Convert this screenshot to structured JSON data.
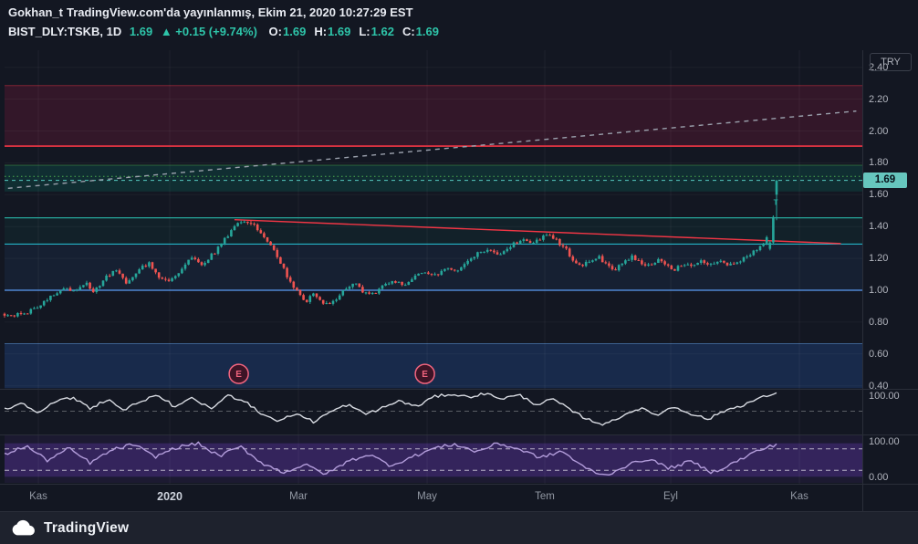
{
  "header": {
    "byline_user": "Gokhan_t",
    "byline_rest": "TradingView.com'da yayınlanmış, Ekim 21, 2020 10:27:29 EST",
    "symbol": "BIST_DLY:TSKB, 1D",
    "last_price": "1.69",
    "change": "▲ +0.15 (+9.74%)",
    "ohlc": [
      {
        "label": "O:",
        "value": "1.69"
      },
      {
        "label": "H:",
        "value": "1.69"
      },
      {
        "label": "L:",
        "value": "1.62"
      },
      {
        "label": "C:",
        "value": "1.69"
      }
    ]
  },
  "axis": {
    "currency": "TRY",
    "current_price": "1.69",
    "price_ticks": [
      {
        "label": "2.40",
        "value": 2.4
      },
      {
        "label": "2.20",
        "value": 2.2
      },
      {
        "label": "2.00",
        "value": 2.0
      },
      {
        "label": "1.80",
        "value": 1.8
      },
      {
        "label": "1.60",
        "value": 1.6
      },
      {
        "label": "1.40",
        "value": 1.4
      },
      {
        "label": "1.20",
        "value": 1.2
      },
      {
        "label": "1.00",
        "value": 1.0
      },
      {
        "label": "0.80",
        "value": 0.8
      },
      {
        "label": "0.60",
        "value": 0.6
      },
      {
        "label": "0.40",
        "value": 0.4
      }
    ],
    "osc_ticks": [
      {
        "pane": 0,
        "value": 100,
        "label": "100.00"
      },
      {
        "pane": 1,
        "value": 100,
        "label": "100.00"
      },
      {
        "pane": 1,
        "value": 0,
        "label": "0.00"
      }
    ]
  },
  "x_axis": {
    "labels": [
      {
        "label": "Kas",
        "t": 0.0394
      },
      {
        "label": "2020",
        "t": 0.1926,
        "year": true
      },
      {
        "label": "Mar",
        "t": 0.3426
      },
      {
        "label": "May",
        "t": 0.4926
      },
      {
        "label": "Tem",
        "t": 0.6298
      },
      {
        "label": "Eyl",
        "t": 0.7766
      },
      {
        "label": "Kas",
        "t": 0.9266
      }
    ]
  },
  "footer": {
    "brand": "TradingView"
  },
  "chart_data": {
    "type": "candlestick",
    "symbol": "BIST_DLY:TSKB",
    "interval": "1D",
    "currency": "TRY",
    "last_bar": {
      "o": 1.69,
      "h": 1.69,
      "l": 1.62,
      "c": 1.69,
      "change": 0.15,
      "change_pct": 9.74
    },
    "y_range": [
      0.39,
      2.51
    ],
    "x_range": [
      "Kas 2019",
      "Kas 2020"
    ],
    "colors": {
      "up": "#26a69a",
      "down": "#ef5350",
      "background": "#131722"
    },
    "price_anchors": [
      [
        0,
        0.85
      ],
      [
        0.012,
        0.84
      ],
      [
        0.025,
        0.86
      ],
      [
        0.04,
        0.9
      ],
      [
        0.055,
        0.97
      ],
      [
        0.07,
        1.02
      ],
      [
        0.082,
        0.99
      ],
      [
        0.095,
        1.04
      ],
      [
        0.105,
        0.99
      ],
      [
        0.118,
        1.08
      ],
      [
        0.13,
        1.13
      ],
      [
        0.142,
        1.05
      ],
      [
        0.155,
        1.12
      ],
      [
        0.168,
        1.17
      ],
      [
        0.18,
        1.09
      ],
      [
        0.192,
        1.05
      ],
      [
        0.205,
        1.13
      ],
      [
        0.218,
        1.2
      ],
      [
        0.23,
        1.16
      ],
      [
        0.245,
        1.24
      ],
      [
        0.258,
        1.33
      ],
      [
        0.27,
        1.42
      ],
      [
        0.28,
        1.44
      ],
      [
        0.29,
        1.41
      ],
      [
        0.3,
        1.36
      ],
      [
        0.312,
        1.27
      ],
      [
        0.322,
        1.17
      ],
      [
        0.333,
        1.05
      ],
      [
        0.345,
        0.97
      ],
      [
        0.352,
        0.92
      ],
      [
        0.36,
        0.99
      ],
      [
        0.368,
        0.93
      ],
      [
        0.378,
        0.9
      ],
      [
        0.388,
        0.96
      ],
      [
        0.398,
        1.01
      ],
      [
        0.408,
        1.05
      ],
      [
        0.418,
        0.99
      ],
      [
        0.428,
        0.97
      ],
      [
        0.44,
        1.02
      ],
      [
        0.452,
        1.06
      ],
      [
        0.465,
        1.03
      ],
      [
        0.478,
        1.08
      ],
      [
        0.49,
        1.12
      ],
      [
        0.502,
        1.09
      ],
      [
        0.515,
        1.15
      ],
      [
        0.528,
        1.11
      ],
      [
        0.54,
        1.18
      ],
      [
        0.552,
        1.23
      ],
      [
        0.565,
        1.26
      ],
      [
        0.578,
        1.22
      ],
      [
        0.59,
        1.28
      ],
      [
        0.602,
        1.32
      ],
      [
        0.615,
        1.29
      ],
      [
        0.628,
        1.34
      ],
      [
        0.64,
        1.33
      ],
      [
        0.652,
        1.27
      ],
      [
        0.662,
        1.2
      ],
      [
        0.672,
        1.15
      ],
      [
        0.682,
        1.18
      ],
      [
        0.692,
        1.21
      ],
      [
        0.702,
        1.16
      ],
      [
        0.712,
        1.13
      ],
      [
        0.722,
        1.18
      ],
      [
        0.732,
        1.21
      ],
      [
        0.742,
        1.17
      ],
      [
        0.752,
        1.15
      ],
      [
        0.762,
        1.19
      ],
      [
        0.772,
        1.15
      ],
      [
        0.782,
        1.13
      ],
      [
        0.792,
        1.17
      ],
      [
        0.802,
        1.14
      ],
      [
        0.812,
        1.18
      ],
      [
        0.822,
        1.15
      ],
      [
        0.832,
        1.19
      ],
      [
        0.842,
        1.16
      ],
      [
        0.852,
        1.18
      ],
      [
        0.862,
        1.2
      ],
      [
        0.872,
        1.24
      ],
      [
        0.88,
        1.27
      ],
      [
        0.887,
        1.3
      ],
      [
        0.893,
        1.46
      ],
      [
        0.9,
        1.69
      ]
    ],
    "levels": [
      {
        "price": 1.905,
        "color": "#f23645",
        "style": "solid",
        "width": 1.6
      },
      {
        "price": 1.715,
        "color": "#4caf50",
        "style": "dotted",
        "width": 1
      },
      {
        "price": 1.69,
        "color": "#56c9c1",
        "style": "dashed",
        "width": 1
      },
      {
        "price": 1.455,
        "color": "#26a69a",
        "style": "solid",
        "width": 1.2
      },
      {
        "price": 1.29,
        "color": "#26c6da",
        "style": "solid",
        "width": 1
      },
      {
        "price": 1.0,
        "color": "#5b9cf6",
        "style": "solid",
        "width": 1.2
      }
    ],
    "bands": [
      {
        "top": 2.285,
        "bottom": 1.905,
        "color": "rgba(178,24,70,0.20)",
        "edge": "rgba(242,54,69,0.45)"
      },
      {
        "top": 1.785,
        "bottom": 1.62,
        "color": "rgba(8,153,129,0.18)",
        "edge": "rgba(76,175,80,0.45)"
      },
      {
        "top": 1.455,
        "bottom": 1.29,
        "color": "rgba(8,153,129,0.08)"
      },
      {
        "top": 1.29,
        "bottom": 1.0,
        "color": "rgba(66,135,245,0.08)"
      },
      {
        "top": 0.665,
        "bottom": 0.385,
        "color": "rgba(41,98,200,0.25)",
        "edge": "rgba(100,160,230,0.5)"
      }
    ],
    "trendlines": [
      {
        "from": [
          0.004,
          1.64
        ],
        "to": [
          0.993,
          2.125
        ],
        "color": "#9aa0ac",
        "style": "dashed"
      },
      {
        "from": [
          0.268,
          1.443
        ],
        "to": [
          0.975,
          1.293
        ],
        "color": "#f23645",
        "style": "solid"
      }
    ],
    "events": [
      {
        "label": "E",
        "t": 0.273,
        "price": 0.475
      },
      {
        "label": "E",
        "t": 0.49,
        "price": 0.475
      }
    ],
    "annotations": [
      {
        "label": "T",
        "t": 0.899,
        "price": 1.535,
        "color": "#26a69a"
      }
    ],
    "oscillators": [
      {
        "name": "oscillator-1",
        "color": "#d8dbe2",
        "range": [
          0,
          100
        ],
        "dashed_levels": [
          50
        ],
        "anchors": [
          [
            0,
            55
          ],
          [
            0.02,
            72
          ],
          [
            0.04,
            48
          ],
          [
            0.06,
            76
          ],
          [
            0.08,
            86
          ],
          [
            0.1,
            58
          ],
          [
            0.12,
            82
          ],
          [
            0.14,
            52
          ],
          [
            0.16,
            80
          ],
          [
            0.18,
            90
          ],
          [
            0.2,
            60
          ],
          [
            0.22,
            86
          ],
          [
            0.24,
            55
          ],
          [
            0.26,
            92
          ],
          [
            0.28,
            78
          ],
          [
            0.3,
            42
          ],
          [
            0.32,
            24
          ],
          [
            0.34,
            44
          ],
          [
            0.36,
            22
          ],
          [
            0.38,
            48
          ],
          [
            0.4,
            68
          ],
          [
            0.42,
            42
          ],
          [
            0.44,
            58
          ],
          [
            0.46,
            78
          ],
          [
            0.48,
            62
          ],
          [
            0.5,
            88
          ],
          [
            0.52,
            96
          ],
          [
            0.54,
            88
          ],
          [
            0.56,
            97
          ],
          [
            0.58,
            84
          ],
          [
            0.6,
            93
          ],
          [
            0.62,
            68
          ],
          [
            0.64,
            82
          ],
          [
            0.66,
            52
          ],
          [
            0.68,
            28
          ],
          [
            0.7,
            14
          ],
          [
            0.72,
            38
          ],
          [
            0.74,
            58
          ],
          [
            0.76,
            40
          ],
          [
            0.78,
            62
          ],
          [
            0.8,
            44
          ],
          [
            0.82,
            28
          ],
          [
            0.84,
            52
          ],
          [
            0.86,
            66
          ],
          [
            0.88,
            84
          ],
          [
            0.895,
            96
          ],
          [
            0.9,
            97
          ]
        ]
      },
      {
        "name": "oscillator-2",
        "color": "#b39ddb",
        "range": [
          0,
          100
        ],
        "dashed_levels": [
          75,
          25
        ],
        "band": [
          10,
          88
        ],
        "band_color": "rgba(103,58,183,0.32)",
        "bg_color": "rgba(103,58,183,0.10)",
        "anchors": [
          [
            0,
            62
          ],
          [
            0.025,
            82
          ],
          [
            0.05,
            48
          ],
          [
            0.075,
            76
          ],
          [
            0.1,
            42
          ],
          [
            0.125,
            72
          ],
          [
            0.15,
            86
          ],
          [
            0.175,
            56
          ],
          [
            0.2,
            78
          ],
          [
            0.225,
            88
          ],
          [
            0.25,
            58
          ],
          [
            0.275,
            80
          ],
          [
            0.3,
            42
          ],
          [
            0.325,
            20
          ],
          [
            0.35,
            38
          ],
          [
            0.375,
            16
          ],
          [
            0.4,
            46
          ],
          [
            0.425,
            62
          ],
          [
            0.45,
            36
          ],
          [
            0.475,
            56
          ],
          [
            0.5,
            76
          ],
          [
            0.525,
            86
          ],
          [
            0.55,
            68
          ],
          [
            0.575,
            88
          ],
          [
            0.6,
            74
          ],
          [
            0.625,
            54
          ],
          [
            0.65,
            70
          ],
          [
            0.675,
            32
          ],
          [
            0.7,
            12
          ],
          [
            0.725,
            36
          ],
          [
            0.75,
            52
          ],
          [
            0.775,
            30
          ],
          [
            0.8,
            46
          ],
          [
            0.825,
            20
          ],
          [
            0.85,
            42
          ],
          [
            0.875,
            68
          ],
          [
            0.9,
            86
          ]
        ]
      }
    ]
  }
}
